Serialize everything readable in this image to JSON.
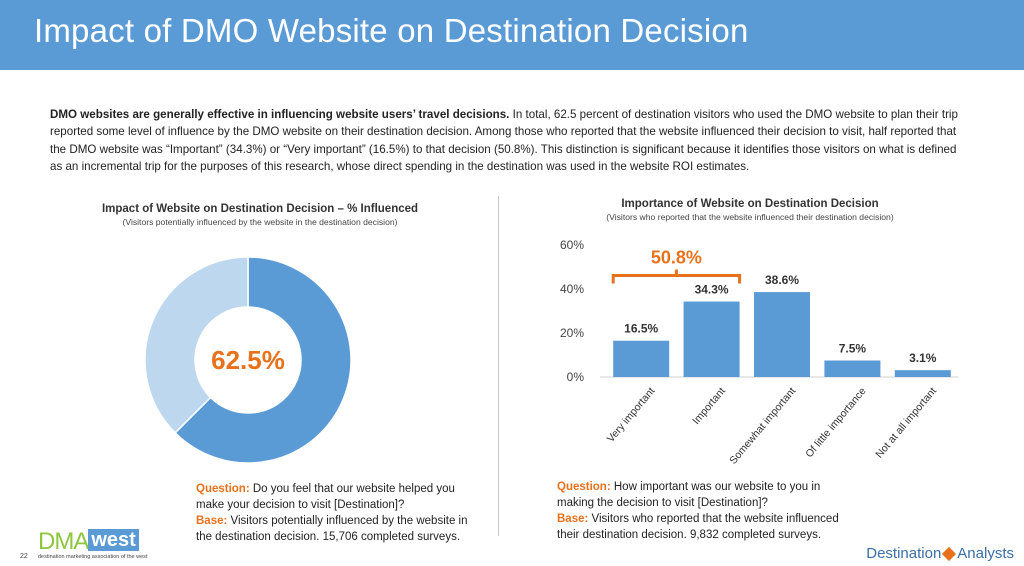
{
  "page": {
    "title": "Impact of DMO Website on Destination Decision",
    "intro_bold": "DMO websites are generally effective in influencing website users’ travel decisions.",
    "intro_rest": " In total, 62.5 percent of destination visitors who used the DMO website to plan their trip reported some level of influence by the DMO website on their destination decision. Among those who reported that the website influenced their decision to visit, half reported that the DMO website was “Important” (34.3%) or “Very important” (16.5%) to that decision (50.8%). This distinction is significant because it identifies those visitors on what is defined as an incremental trip for the purposes of this research, whose direct spending in the destination was used in the website ROI estimates.",
    "page_number": "22"
  },
  "left": {
    "question_label": "Question:",
    "question_text": "Do you feel that our website helped you make your decision to visit [Destination]?",
    "base_label": "Base:",
    "base_text": "Visitors potentially influenced by the website in the destination decision. 15,706 completed surveys."
  },
  "right": {
    "question_label": "Question:",
    "question_text": "How important was our website to you in making the decision to visit [Destination]?",
    "base_label": "Base:",
    "base_text": "Visitors who reported that the website influenced their destination decision. 9,832 completed surveys."
  },
  "logos": {
    "dma_main": "DMA",
    "dma_west": "west",
    "dma_tagline": "destination marketing association of the west",
    "da_left": "Destination",
    "da_right": "Analysts"
  },
  "colors": {
    "title_bar": "#5b9bd5",
    "bar": "#5b9bd5",
    "donut_main": "#5b9bd5",
    "donut_rest": "#bdd7ee",
    "accent": "#e8711c"
  },
  "chart_data": [
    {
      "type": "pie",
      "title": "Impact of Website on Destination Decision – % Influenced",
      "subtitle": "(Visitors potentially influenced by the website in the destination decision)",
      "categories": [
        "",
        ""
      ],
      "values": [
        62.5,
        37.5
      ],
      "center_label": "62.5%"
    },
    {
      "type": "bar",
      "title": "Importance of Website on Destination Decision",
      "subtitle": "(Visitors who reported that the website influenced their destination decision)",
      "categories": [
        "Very important",
        "Important",
        "Somewhat important",
        "Of little importance",
        "Not at all important"
      ],
      "values": [
        16.5,
        34.3,
        38.6,
        7.5,
        3.1
      ],
      "value_labels": [
        "16.5%",
        "34.3%",
        "38.6%",
        "7.5%",
        "3.1%"
      ],
      "yticks": [
        "0%",
        "20%",
        "40%",
        "60%"
      ],
      "ylim": [
        0,
        60
      ],
      "annotation": "50.8%",
      "grid": false
    }
  ]
}
